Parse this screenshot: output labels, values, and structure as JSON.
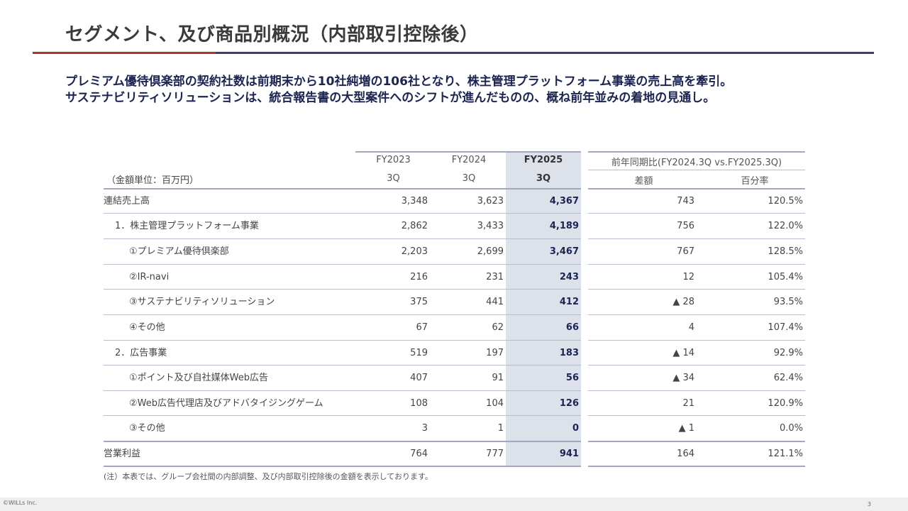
{
  "page": {
    "title": "セグメント、及び商品別概況（内部取引控除後）",
    "lead": [
      "プレミアム優待倶楽部の契約社数は前期末から10社純増の106社となり、株主管理プラットフォーム事業の売上高を牽引。",
      "サステナビリティソリューションは、統合報告書の大型案件へのシフトが進んだものの、概ね前年並みの着地の見通し。"
    ],
    "footer": {
      "copyright": "©WILLs Inc.",
      "page_number": "3"
    }
  },
  "table": {
    "unit_label": "（金額単位：百万円）",
    "headers": {
      "fy2023": "FY2023",
      "fy2024": "FY2024",
      "fy2025": "FY2025",
      "yoy_group": "前年同期比(FY2024.3Q vs.FY2025.3Q)",
      "q_2023": "3Q",
      "q_2024": "3Q",
      "q_2025": "3Q",
      "diff": "差額",
      "pct": "百分率"
    },
    "rows": [
      {
        "label": "連結売上高",
        "fy2023": "3,348",
        "fy2024": "3,623",
        "fy2025": "4,367",
        "diff": "743",
        "pct": "120.5%"
      },
      {
        "label": "1．株主管理プラットフォーム事業",
        "fy2023": "2,862",
        "fy2024": "3,433",
        "fy2025": "4,189",
        "diff": "756",
        "pct": "122.0%"
      },
      {
        "label": "①プレミアム優待倶楽部",
        "fy2023": "2,203",
        "fy2024": "2,699",
        "fy2025": "3,467",
        "diff": "767",
        "pct": "128.5%"
      },
      {
        "label": "②IR-navi",
        "fy2023": "216",
        "fy2024": "231",
        "fy2025": "243",
        "diff": "12",
        "pct": "105.4%"
      },
      {
        "label": "③サステナビリティソリューション",
        "fy2023": "375",
        "fy2024": "441",
        "fy2025": "412",
        "diff": "▲ 28",
        "pct": "93.5%"
      },
      {
        "label": "④その他",
        "fy2023": "67",
        "fy2024": "62",
        "fy2025": "66",
        "diff": "4",
        "pct": "107.4%"
      },
      {
        "label": "2．広告事業",
        "fy2023": "519",
        "fy2024": "197",
        "fy2025": "183",
        "diff": "▲ 14",
        "pct": "92.9%"
      },
      {
        "label": "①ポイント及び自社媒体Web広告",
        "fy2023": "407",
        "fy2024": "91",
        "fy2025": "56",
        "diff": "▲ 34",
        "pct": "62.4%"
      },
      {
        "label": "②Web広告代理店及びアドバタイジングゲーム",
        "fy2023": "108",
        "fy2024": "104",
        "fy2025": "126",
        "diff": "21",
        "pct": "120.9%"
      },
      {
        "label": "③その他",
        "fy2023": "3",
        "fy2024": "1",
        "fy2025": "0",
        "diff": "▲ 1",
        "pct": "0.0%"
      },
      {
        "label": "営業利益",
        "fy2023": "764",
        "fy2024": "777",
        "fy2025": "941",
        "diff": "164",
        "pct": "121.1%"
      }
    ],
    "note": "(注）本表では、グループ会社間の内部調整、及び内部取引控除後の金額を表示しております。"
  }
}
